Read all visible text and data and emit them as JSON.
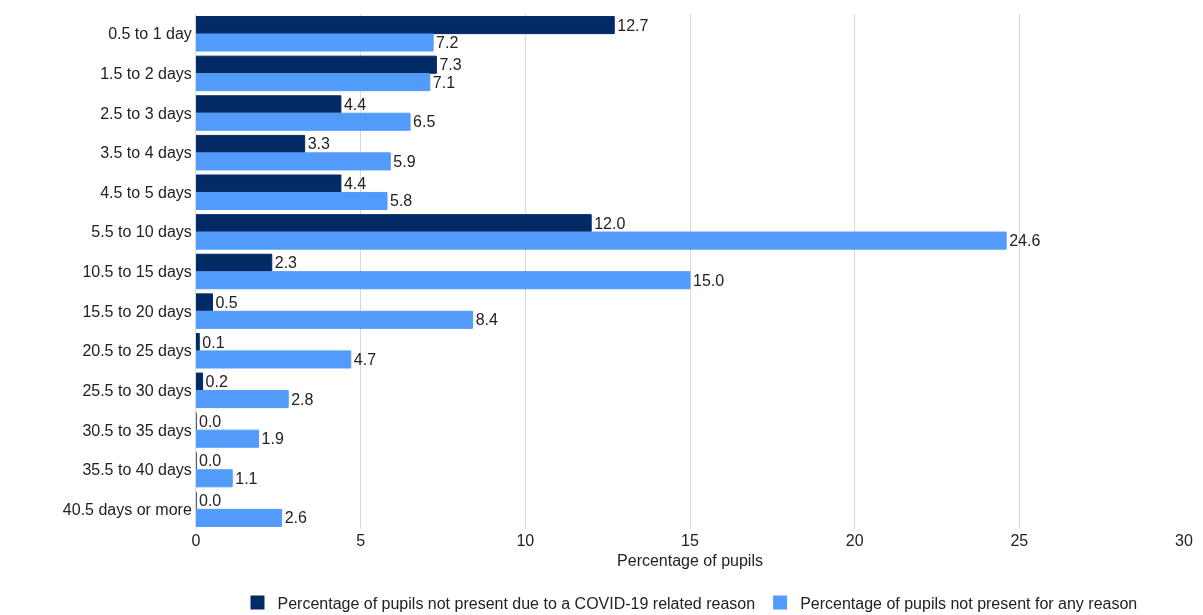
{
  "chart_data": {
    "type": "bar",
    "orientation": "horizontal",
    "xlabel": "Percentage of pupils",
    "categories": [
      "0.5 to 1 day",
      "1.5 to 2 days",
      "2.5 to 3 days",
      "3.5 to 4 days",
      "4.5 to 5 days",
      "5.5 to 10 days",
      "10.5 to 15 days",
      "15.5 to 20 days",
      "20.5 to 25 days",
      "25.5 to 30 days",
      "30.5 to 35 days",
      "35.5 to 40 days",
      "40.5 days or more"
    ],
    "series": [
      {
        "name": "Percentage of pupils not present due to a COVID-19 related reason",
        "color": "#022b66",
        "values": [
          12.7,
          7.3,
          4.4,
          3.3,
          4.4,
          12.0,
          2.3,
          0.5,
          0.1,
          0.2,
          0.0,
          0.0,
          0.0
        ],
        "value_labels": [
          "12.7",
          "7.3",
          "4.4",
          "3.3",
          "4.4",
          "12.0",
          "2.3",
          "0.5",
          "0.1",
          "0.2",
          "0.0",
          "0.0",
          "0.0"
        ]
      },
      {
        "name": "Percentage of pupils not present for any reason",
        "color": "#529bfa",
        "values": [
          7.2,
          7.1,
          6.5,
          5.9,
          5.8,
          24.6,
          15.0,
          8.4,
          4.7,
          2.8,
          1.9,
          1.1,
          2.6
        ],
        "value_labels": [
          "7.2",
          "7.1",
          "6.5",
          "5.9",
          "5.8",
          "24.6",
          "15.0",
          "8.4",
          "4.7",
          "2.8",
          "1.9",
          "1.1",
          "2.6"
        ]
      }
    ],
    "xlim": [
      0,
      30
    ],
    "xticks": [
      0,
      5,
      10,
      15,
      20,
      25,
      30
    ],
    "grid": "x",
    "legend": "bottom"
  }
}
